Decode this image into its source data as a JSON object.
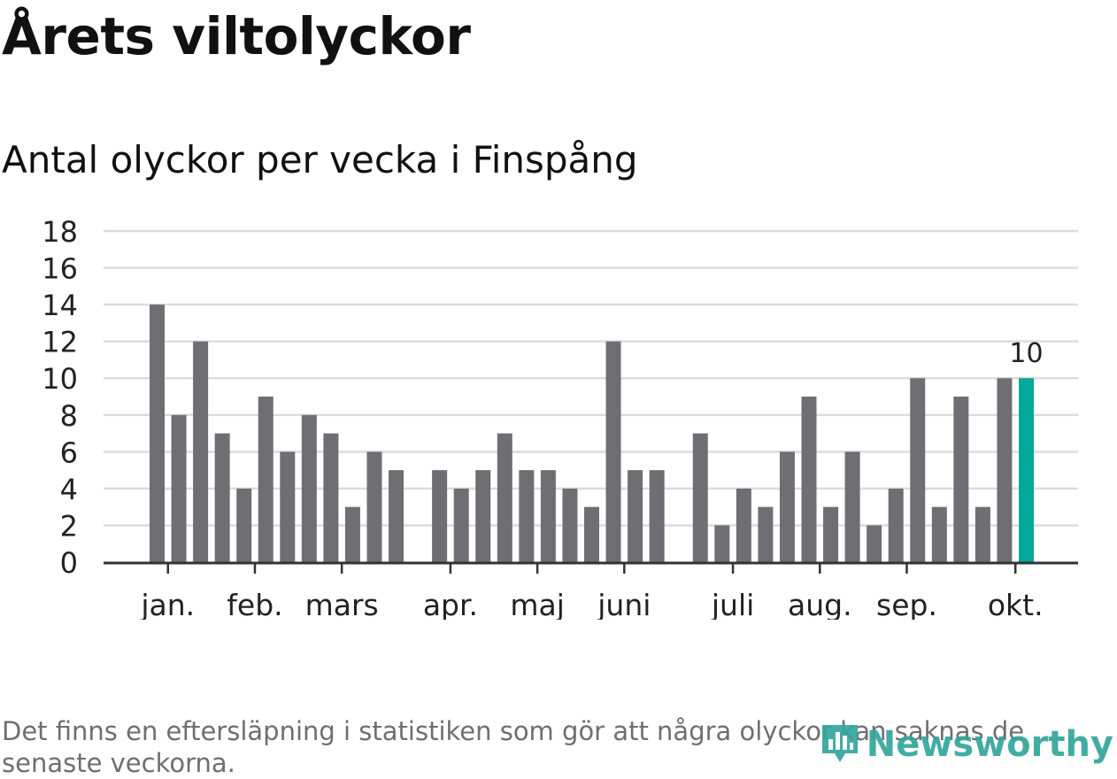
{
  "title": "Årets viltolyckor",
  "subtitle": "Antal olyckor per vecka i Finspång",
  "footnote": "Det finns en eftersläpning i statistiken som gör att några olyckor kan saknas de senaste veckorna.",
  "logo": {
    "text": "Newsworthy",
    "icon": "bar-chart-logo-icon",
    "color": "#33a59c"
  },
  "chart_data": {
    "type": "bar",
    "weeks": [
      1,
      2,
      3,
      4,
      5,
      6,
      7,
      8,
      9,
      10,
      11,
      12,
      13,
      14,
      15,
      16,
      17,
      18,
      19,
      20,
      21,
      22,
      23,
      24,
      25,
      26,
      27,
      28,
      29,
      30,
      31,
      32,
      33,
      34,
      35,
      36,
      37,
      38,
      39,
      40,
      41
    ],
    "values": [
      14,
      8,
      12,
      7,
      4,
      9,
      6,
      8,
      7,
      3,
      6,
      5,
      0,
      5,
      4,
      5,
      7,
      5,
      5,
      4,
      3,
      12,
      5,
      5,
      0,
      7,
      2,
      4,
      3,
      6,
      9,
      3,
      6,
      2,
      4,
      10,
      3,
      9,
      3,
      10,
      10
    ],
    "highlight_index": 40,
    "highlight_label": "10",
    "bar_color": "#6f6e73",
    "highlight_color": "#00a99a",
    "ylim": [
      0,
      18
    ],
    "yticks": [
      "0",
      "2",
      "4",
      "6",
      "8",
      "10",
      "12",
      "14",
      "16",
      "18"
    ],
    "xticks": [
      {
        "label": "jan.",
        "week": 1.5
      },
      {
        "label": "feb.",
        "week": 5.5
      },
      {
        "label": "mars",
        "week": 9.5
      },
      {
        "label": "apr.",
        "week": 14.5
      },
      {
        "label": "maj",
        "week": 18.5
      },
      {
        "label": "juni",
        "week": 22.5
      },
      {
        "label": "juli",
        "week": 27.5
      },
      {
        "label": "aug.",
        "week": 31.5
      },
      {
        "label": "sep.",
        "week": 35.5
      },
      {
        "label": "okt.",
        "week": 40.5
      }
    ],
    "grid": true,
    "xlabel": "",
    "ylabel": ""
  }
}
